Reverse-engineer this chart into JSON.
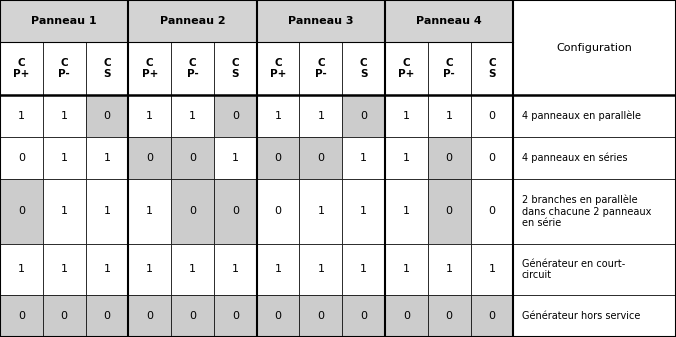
{
  "panneau_headers": [
    "Panneau 1",
    "Panneau 2",
    "Panneau 3",
    "Panneau 4"
  ],
  "col_subheaders": [
    "C\nP+",
    "C\nP-",
    "C\nS",
    "C\nP+",
    "C\nP-",
    "C\nS",
    "C\nP+",
    "C\nP-",
    "C\nS",
    "C\nP+",
    "C\nP-",
    "C\nS"
  ],
  "data_rows": [
    [
      1,
      1,
      0,
      1,
      1,
      0,
      1,
      1,
      0,
      1,
      1,
      0
    ],
    [
      0,
      1,
      1,
      0,
      0,
      1,
      0,
      0,
      1,
      1,
      0,
      0
    ],
    [
      0,
      1,
      1,
      1,
      0,
      0,
      0,
      1,
      1,
      1,
      0,
      0
    ],
    [
      1,
      1,
      1,
      1,
      1,
      1,
      1,
      1,
      1,
      1,
      1,
      1
    ],
    [
      0,
      0,
      0,
      0,
      0,
      0,
      0,
      0,
      0,
      0,
      0,
      0
    ]
  ],
  "gray_cells": [
    [
      2,
      5,
      8
    ],
    [
      3,
      4,
      6,
      7,
      10
    ],
    [
      0,
      4,
      5,
      10
    ],
    [],
    [
      0,
      1,
      2,
      3,
      4,
      5,
      6,
      7,
      8,
      9,
      10,
      11
    ]
  ],
  "config_texts": [
    "4 panneaux en parallèle",
    "4 panneaux en séries",
    "2 branches en parallèle\ndans chacune 2 panneaux\nen série",
    "Générateur en court-\ncircuit",
    "Générateur hors service"
  ],
  "gray_color": "#cccccc",
  "white_color": "#ffffff",
  "outer_bg": "#c8c8c8",
  "header_bg": "#d3d3d3",
  "border_color": "#000000",
  "text_color": "#000000",
  "col_widths_raw": [
    1.0,
    1.0,
    1.0,
    1.0,
    1.0,
    1.0,
    1.0,
    1.0,
    1.0,
    1.0,
    1.0,
    1.0,
    3.8
  ],
  "row_heights_raw": [
    1.1,
    1.4,
    1.1,
    1.1,
    1.7,
    1.35,
    1.1
  ],
  "fig_width": 6.76,
  "fig_height": 3.37,
  "dpi": 100
}
